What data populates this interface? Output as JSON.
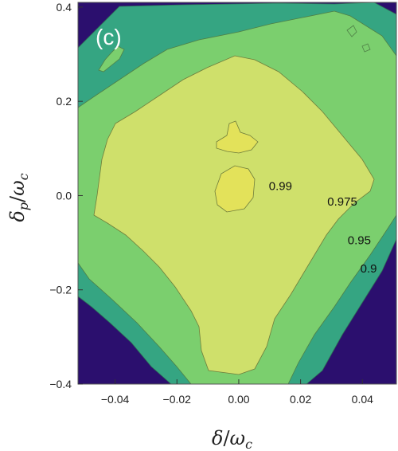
{
  "chart_data": {
    "type": "contour",
    "panel_label": "(c)",
    "xlabel": "δ/ω_c",
    "ylabel": "δ_p/ω_c",
    "xlim": [
      -0.052,
      0.051
    ],
    "ylim": [
      -0.4,
      0.41
    ],
    "xticks": [
      "-0.04",
      "-0.02",
      "0.00",
      "0.02",
      "0.04"
    ],
    "xtick_values": [
      -0.04,
      -0.02,
      0.0,
      0.02,
      0.04
    ],
    "yticks": [
      "-0.4",
      "-0.2",
      "0.0",
      "0.2",
      "0.4"
    ],
    "ytick_values": [
      -0.4,
      -0.2,
      0.0,
      0.2,
      0.4
    ],
    "levels": [
      0.9,
      0.95,
      0.975,
      0.99
    ],
    "contour_labels": [
      {
        "text": "0.99",
        "x": 0.0135,
        "y": 0.02
      },
      {
        "text": "0.975",
        "x": 0.0335,
        "y": -0.013
      },
      {
        "text": "0.95",
        "x": 0.039,
        "y": -0.095
      },
      {
        "text": "0.9",
        "x": 0.042,
        "y": -0.155
      }
    ],
    "region_colors": {
      "below_0.9": "#2b0f6e",
      "0.9_to_0.95": "#35a582",
      "0.95_to_0.975": "#7bcf6e",
      "0.975_to_0.99": "#cfe06b",
      "above_0.99": "#e3e25a"
    },
    "grid": false
  }
}
